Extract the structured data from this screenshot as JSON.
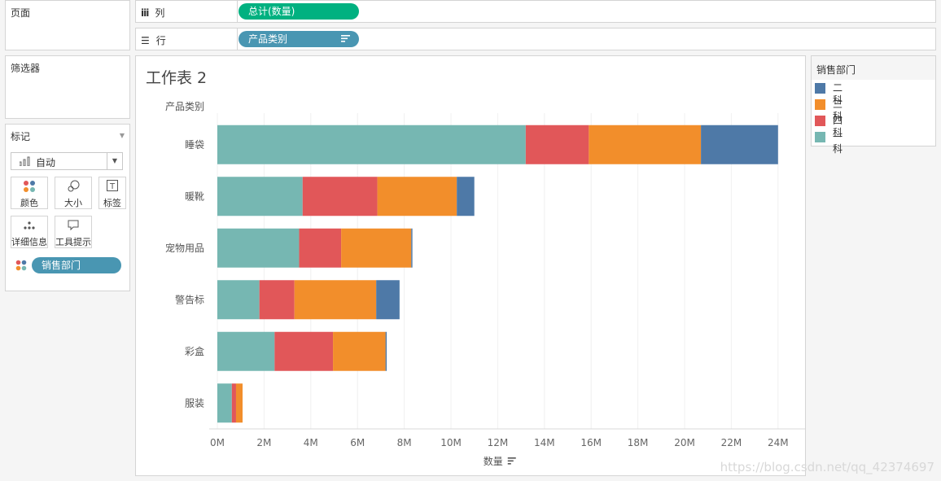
{
  "left": {
    "pages_title": "页面",
    "filters_title": "筛选器",
    "marks": {
      "title": "标记",
      "mark_type": "自动",
      "buttons": [
        "颜色",
        "大小",
        "标签",
        "详细信息",
        "工具提示"
      ],
      "pill": "销售部门"
    }
  },
  "shelves": {
    "columns_label": "列",
    "columns_pill": "总计(数量)",
    "rows_label": "行",
    "rows_pill": "产品类别"
  },
  "legend": {
    "title": "销售部门",
    "items": [
      {
        "label": "二科",
        "color": "#4e79a7"
      },
      {
        "label": "三科",
        "color": "#f28e2b"
      },
      {
        "label": "四科",
        "color": "#e15759"
      },
      {
        "label": "一科",
        "color": "#76b7b2"
      }
    ]
  },
  "chart_data": {
    "type": "bar",
    "orientation": "horizontal",
    "stacked": true,
    "title": "工作表 2",
    "ylabel": "产品类别",
    "xlabel": "数量",
    "xlim": [
      0,
      25
    ],
    "x_unit": "M",
    "x_ticks": [
      "0M",
      "2M",
      "4M",
      "6M",
      "8M",
      "10M",
      "12M",
      "14M",
      "16M",
      "18M",
      "20M",
      "22M",
      "24M"
    ],
    "categories": [
      "睡袋",
      "暖靴",
      "宠物用品",
      "警告标",
      "彩盒",
      "服装"
    ],
    "series": [
      {
        "name": "一科",
        "color": "#76b7b2",
        "values": [
          13.2,
          3.65,
          3.5,
          1.8,
          2.45,
          0.62
        ]
      },
      {
        "name": "四科",
        "color": "#e15759",
        "values": [
          2.7,
          3.2,
          1.8,
          1.5,
          2.5,
          0.18
        ]
      },
      {
        "name": "三科",
        "color": "#f28e2b",
        "values": [
          4.8,
          3.4,
          3.0,
          3.5,
          2.25,
          0.28
        ]
      },
      {
        "name": "二科",
        "color": "#4e79a7",
        "values": [
          3.3,
          0.75,
          0.05,
          1.0,
          0.05,
          0.0
        ]
      }
    ]
  },
  "watermark": "https://blog.csdn.net/qq_42374697"
}
